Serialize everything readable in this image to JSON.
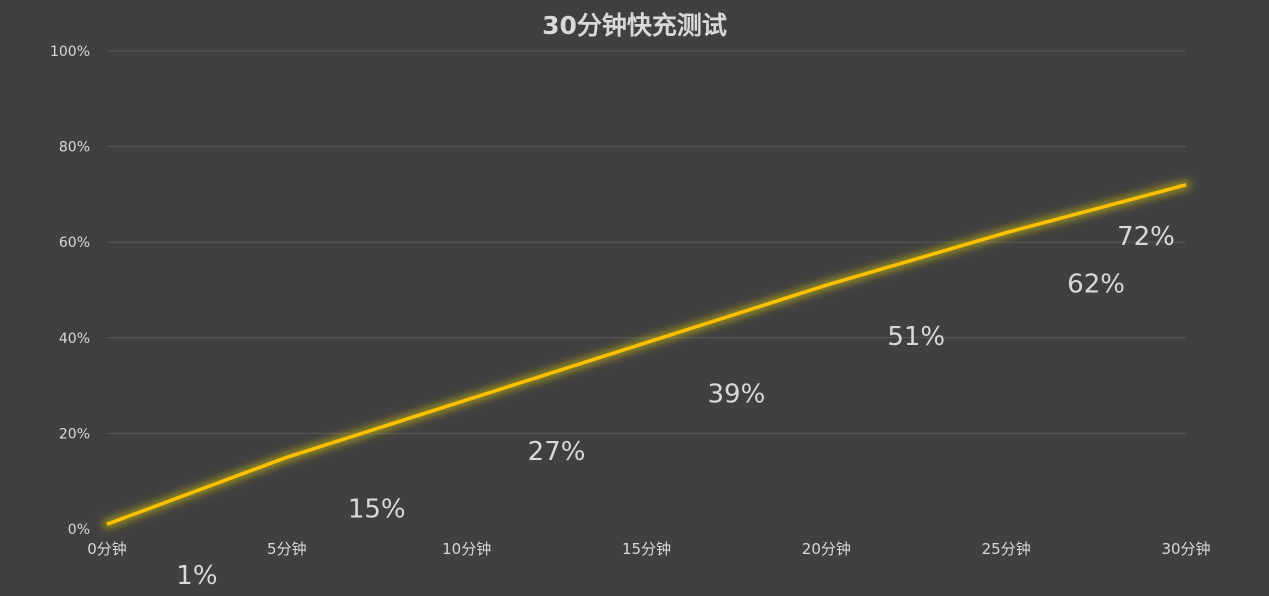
{
  "colors": {
    "background": "#404040",
    "line": "#ffc000",
    "glow": "#e6d400",
    "gridline": "#595959",
    "text": "#d9d9d9"
  },
  "chart_data": {
    "type": "line",
    "title": "30分钟快充测试",
    "xlabel": "",
    "ylabel": "",
    "categories": [
      "0分钟",
      "5分钟",
      "10分钟",
      "15分钟",
      "20分钟",
      "25分钟",
      "30分钟"
    ],
    "series": [
      {
        "values": [
          1,
          15,
          27,
          39,
          51,
          62,
          72
        ]
      }
    ],
    "data_labels": [
      "1%",
      "15%",
      "27%",
      "39%",
      "51%",
      "62%",
      "72%"
    ],
    "y_ticks": [
      "0%",
      "20%",
      "40%",
      "60%",
      "80%",
      "100%"
    ],
    "ylim": [
      0,
      100
    ],
    "grid": true,
    "legend": "none"
  }
}
